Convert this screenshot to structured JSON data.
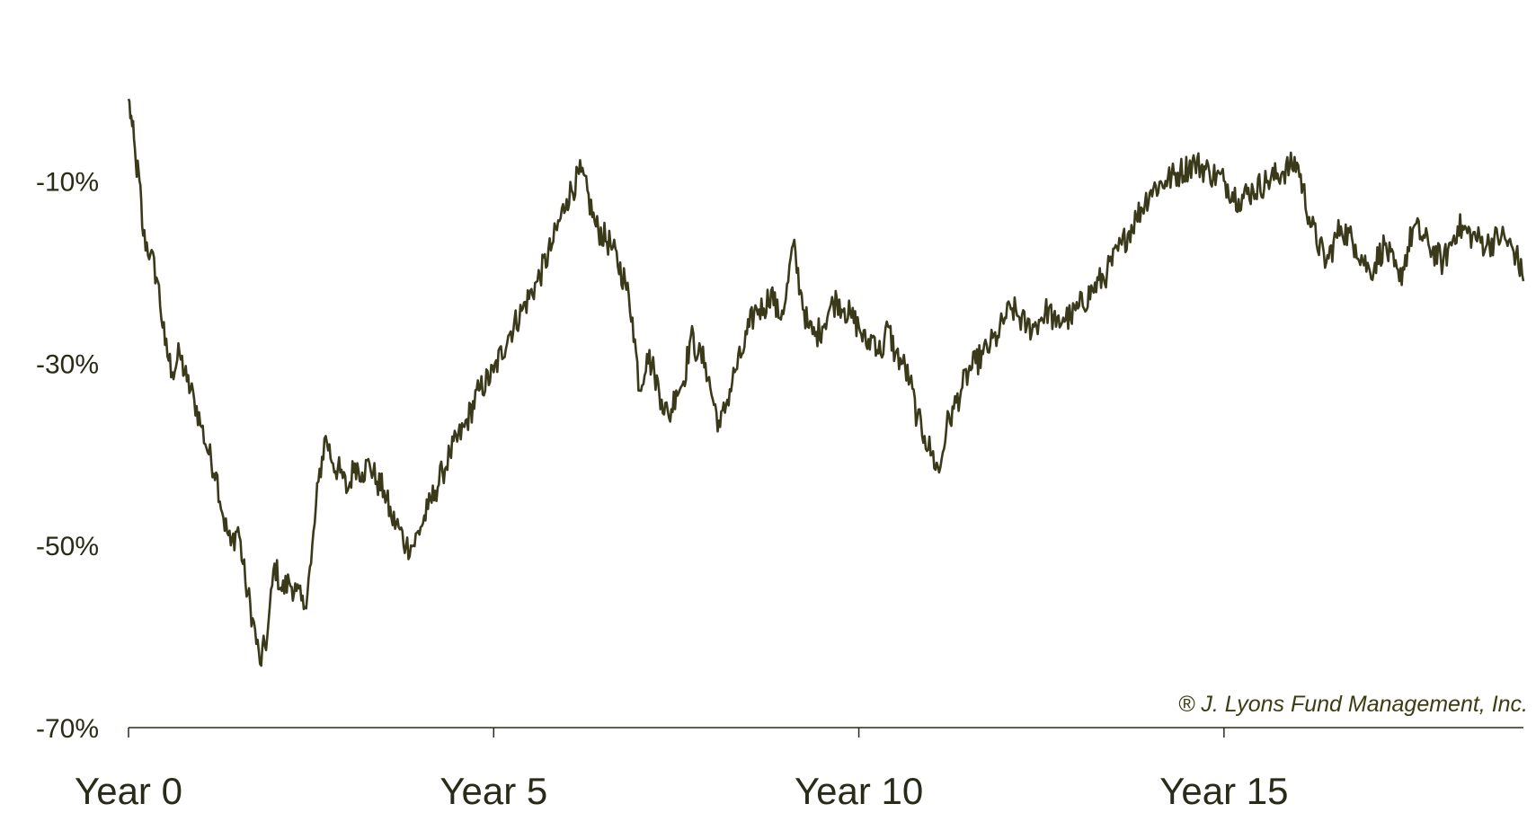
{
  "chart_data": {
    "type": "line",
    "title": "",
    "xlabel": "",
    "ylabel": "",
    "xlim": [
      0,
      19.1
    ],
    "ylim": [
      -70,
      0
    ],
    "grid": false,
    "legend": "none",
    "line_color": "#3a3a1a",
    "axis_color": "#2a2a18",
    "y_ticks": [
      {
        "value": -10,
        "label": "-10%"
      },
      {
        "value": -30,
        "label": "-30%"
      },
      {
        "value": -50,
        "label": "-50%"
      },
      {
        "value": -70,
        "label": "-70%"
      }
    ],
    "x_ticks": [
      {
        "value": 0,
        "label": "Year 0"
      },
      {
        "value": 5,
        "label": "Year 5"
      },
      {
        "value": 10,
        "label": "Year 10"
      },
      {
        "value": 15,
        "label": "Year 15"
      }
    ],
    "annotation": "® J. Lyons Fund Management, Inc.",
    "series": [
      {
        "x": [
          0,
          0.05,
          0.1,
          0.15,
          0.2,
          0.3,
          0.4,
          0.5,
          0.6,
          0.7,
          0.8,
          0.9,
          1.0,
          1.1,
          1.2,
          1.3,
          1.4,
          1.5,
          1.6,
          1.7,
          1.8,
          1.9,
          2.0,
          2.1,
          2.2,
          2.3,
          2.4,
          2.5,
          2.6,
          2.7,
          2.8,
          2.9,
          3.0,
          3.1,
          3.2,
          3.3,
          3.4,
          3.5,
          3.6,
          3.7,
          3.8,
          3.9,
          4.0,
          4.1,
          4.2,
          4.3,
          4.4,
          4.6,
          4.8,
          5.0,
          5.2,
          5.4,
          5.6,
          5.8,
          6.0,
          6.2,
          6.4,
          6.6,
          6.8,
          6.9,
          7.0,
          7.1,
          7.2,
          7.3,
          7.4,
          7.5,
          7.6,
          7.7,
          7.8,
          7.9,
          8.0,
          8.1,
          8.2,
          8.3,
          8.4,
          8.5,
          8.6,
          8.7,
          8.8,
          8.9,
          9.0,
          9.1,
          9.2,
          9.3,
          9.4,
          9.5,
          9.6,
          9.7,
          9.8,
          9.9,
          10.0,
          10.1,
          10.2,
          10.3,
          10.4,
          10.5,
          10.6,
          10.7,
          10.8,
          10.9,
          11.0,
          11.1,
          11.2,
          11.3,
          11.4,
          11.5,
          11.6,
          11.7,
          11.8,
          11.9,
          12.0,
          12.1,
          12.2,
          12.3,
          12.4,
          12.5,
          12.6,
          12.7,
          12.8,
          12.9,
          13.0,
          13.2,
          13.4,
          13.6,
          13.8,
          14.0,
          14.2,
          14.4,
          14.6,
          14.8,
          15.0,
          15.2,
          15.4,
          15.6,
          15.8,
          16.0,
          16.2,
          16.4,
          16.6,
          16.8,
          17.0,
          17.2,
          17.4,
          17.6,
          17.8,
          18.0,
          18.2,
          18.4,
          18.6,
          18.8,
          19.0,
          19.1
        ],
        "values": [
          -1,
          -4,
          -8,
          -10,
          -16,
          -18,
          -21,
          -28,
          -31,
          -29,
          -32,
          -34,
          -37,
          -40,
          -42,
          -47,
          -50,
          -48,
          -54,
          -58,
          -63,
          -60,
          -52,
          -55,
          -54,
          -55,
          -57,
          -52,
          -43,
          -38,
          -41,
          -42,
          -44,
          -41,
          -42,
          -41,
          -43,
          -44,
          -47,
          -48,
          -50,
          -50,
          -48,
          -46,
          -44,
          -42,
          -40,
          -37,
          -33,
          -31,
          -27,
          -24,
          -21,
          -17,
          -12,
          -9,
          -15,
          -17,
          -21,
          -25,
          -33,
          -29,
          -31,
          -34,
          -36,
          -33,
          -32,
          -27,
          -29,
          -30,
          -34,
          -37,
          -34,
          -31,
          -29,
          -26,
          -24,
          -24,
          -22,
          -25,
          -23,
          -17,
          -22,
          -26,
          -27,
          -26,
          -24,
          -23,
          -24,
          -25,
          -26,
          -28,
          -27,
          -29,
          -26,
          -29,
          -30,
          -32,
          -36,
          -38,
          -40,
          -42,
          -37,
          -35,
          -33,
          -31,
          -30,
          -29,
          -28,
          -27,
          -25,
          -24,
          -25,
          -26,
          -26,
          -25,
          -24,
          -26,
          -25,
          -25,
          -24,
          -22,
          -20,
          -17,
          -14,
          -11,
          -10,
          -9,
          -8,
          -9,
          -10,
          -12,
          -11,
          -10,
          -9,
          -8,
          -15,
          -19,
          -15,
          -17,
          -20,
          -17,
          -21,
          -15,
          -17,
          -19,
          -15,
          -16,
          -17,
          -16,
          -18,
          -21
        ]
      }
    ]
  }
}
